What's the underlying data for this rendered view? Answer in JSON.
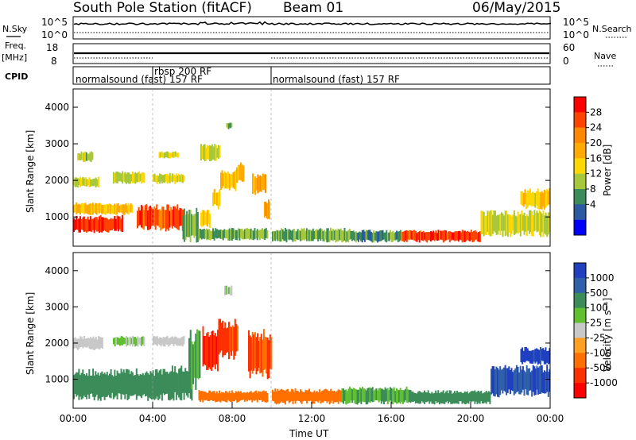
{
  "header": {
    "station": "South Pole Station (fitACF)",
    "beam": "Beam 01",
    "date": "06/May/2015"
  },
  "nsky_panel": {
    "left_label": "N.Sky",
    "right_label": "N.Search",
    "left_ticks": [
      "10^5",
      "10^0"
    ],
    "right_ticks": [
      "10^5",
      "10^0"
    ]
  },
  "freq_panel": {
    "left_label_line1": "Freq.",
    "left_label_line2": "[MHz]",
    "right_label": "Nave",
    "left_ticks": [
      "18",
      "8"
    ],
    "right_ticks": [
      "60",
      "0"
    ]
  },
  "cpid_panel": {
    "label": "CPID",
    "segments": [
      {
        "name": "normalsound (fast) 157 RF",
        "start_hour": 0,
        "end_hour": 4.0
      },
      {
        "name": "rbsp 200 RF",
        "start_hour": 4.0,
        "end_hour": 10.0
      },
      {
        "name": "normalsound (fast) 157 RF",
        "start_hour": 10.0,
        "end_hour": 24.0
      }
    ]
  },
  "power_colorbar": {
    "label": "Power [dB]",
    "ticks": [
      "28",
      "24",
      "20",
      "16",
      "12",
      "8",
      "4"
    ],
    "colors": [
      "#ff0000",
      "#ff4400",
      "#ff8800",
      "#ffaa00",
      "#ffd700",
      "#a8c83c",
      "#3c8c5a",
      "#2c5aa0",
      "#0000ff"
    ]
  },
  "velocity_colorbar": {
    "label": "Velocity [m s⁻¹]",
    "ticks": [
      "1000",
      "500",
      "100",
      "25",
      "-25",
      "-100",
      "-500",
      "-1000"
    ],
    "colors": [
      "#2040c0",
      "#3060a8",
      "#3c8c5a",
      "#60c030",
      "#c8c8c8",
      "#ffa020",
      "#ff7000",
      "#ff3000",
      "#ff0000"
    ]
  },
  "chart_data": [
    {
      "type": "heatmap",
      "panel": "power",
      "ylabel": "Slant Range [km]",
      "xlim": [
        0,
        24
      ],
      "ylim": [
        200,
        4500
      ],
      "yticks": [
        "4000",
        "3000",
        "2000",
        "1000"
      ],
      "cells": [
        {
          "t0": 0.0,
          "t1": 2.5,
          "r0": 550,
          "r1": 1050,
          "v": 28
        },
        {
          "t0": 0.0,
          "t1": 3.0,
          "r0": 1050,
          "r1": 1400,
          "v": 18
        },
        {
          "t0": 0.0,
          "t1": 1.3,
          "r0": 1800,
          "r1": 2100,
          "v": 14
        },
        {
          "t0": 0.2,
          "t1": 1.0,
          "r0": 2500,
          "r1": 2800,
          "v": 12
        },
        {
          "t0": 2.0,
          "t1": 3.6,
          "r0": 1900,
          "r1": 2250,
          "v": 14
        },
        {
          "t0": 3.2,
          "t1": 5.6,
          "r0": 600,
          "r1": 1350,
          "v": 27
        },
        {
          "t0": 4.0,
          "t1": 5.6,
          "r0": 1900,
          "r1": 2200,
          "v": 14
        },
        {
          "t0": 4.3,
          "t1": 5.3,
          "r0": 2600,
          "r1": 2800,
          "v": 14
        },
        {
          "t0": 5.5,
          "t1": 6.3,
          "r0": 300,
          "r1": 1250,
          "v": 10
        },
        {
          "t0": 6.3,
          "t1": 9.8,
          "r0": 350,
          "r1": 700,
          "v": 11
        },
        {
          "t0": 6.4,
          "t1": 6.9,
          "r0": 700,
          "r1": 1200,
          "v": 19
        },
        {
          "t0": 7.0,
          "t1": 7.4,
          "r0": 1200,
          "r1": 1800,
          "v": 17
        },
        {
          "t0": 7.4,
          "t1": 8.2,
          "r0": 1700,
          "r1": 2300,
          "v": 18
        },
        {
          "t0": 8.2,
          "t1": 8.6,
          "r0": 1900,
          "r1": 2500,
          "v": 17
        },
        {
          "t0": 9.0,
          "t1": 9.7,
          "r0": 1600,
          "r1": 2200,
          "v": 20
        },
        {
          "t0": 9.6,
          "t1": 9.9,
          "r0": 900,
          "r1": 1500,
          "v": 22
        },
        {
          "t0": 10.0,
          "t1": 14.0,
          "r0": 300,
          "r1": 700,
          "v": 11
        },
        {
          "t0": 14.0,
          "t1": 16.5,
          "r0": 300,
          "r1": 650,
          "v": 9
        },
        {
          "t0": 16.5,
          "t1": 20.5,
          "r0": 300,
          "r1": 650,
          "v": 27
        },
        {
          "t0": 20.5,
          "t1": 24.0,
          "r0": 450,
          "r1": 1200,
          "v": 14
        },
        {
          "t0": 22.5,
          "t1": 24.0,
          "r0": 1200,
          "r1": 1800,
          "v": 17
        },
        {
          "t0": 6.4,
          "t1": 7.4,
          "r0": 2500,
          "r1": 3000,
          "v": 14
        },
        {
          "t0": 7.7,
          "t1": 8.0,
          "r0": 3400,
          "r1": 3600,
          "v": 10
        }
      ]
    },
    {
      "type": "heatmap",
      "panel": "velocity",
      "ylabel": "Slant Range [km]",
      "xlabel": "Time UT",
      "xlim": [
        0,
        24
      ],
      "ylim": [
        200,
        4500
      ],
      "xticks": [
        "00:00",
        "04:00",
        "08:00",
        "12:00",
        "16:00",
        "20:00",
        "00:00"
      ],
      "yticks": [
        "4000",
        "3000",
        "2000",
        "1000"
      ],
      "cells": [
        {
          "t0": 0.0,
          "t1": 4.5,
          "r0": 400,
          "r1": 1300,
          "v": 200
        },
        {
          "t0": 0.0,
          "t1": 1.5,
          "r0": 1800,
          "r1": 2200,
          "v": 0
        },
        {
          "t0": 2.0,
          "t1": 3.6,
          "r0": 1900,
          "r1": 2200,
          "v": 30
        },
        {
          "t0": 4.0,
          "t1": 5.6,
          "r0": 1900,
          "r1": 2200,
          "v": 0
        },
        {
          "t0": 4.5,
          "t1": 6.0,
          "r0": 400,
          "r1": 1400,
          "v": 150
        },
        {
          "t0": 5.8,
          "t1": 6.4,
          "r0": 600,
          "r1": 2400,
          "v": 80
        },
        {
          "t0": 6.3,
          "t1": 9.8,
          "r0": 350,
          "r1": 700,
          "v": -150
        },
        {
          "t0": 6.5,
          "t1": 7.3,
          "r0": 1100,
          "r1": 2500,
          "v": -600
        },
        {
          "t0": 7.3,
          "t1": 8.3,
          "r0": 1500,
          "r1": 2700,
          "v": -400
        },
        {
          "t0": 8.8,
          "t1": 10.0,
          "r0": 1000,
          "r1": 2400,
          "v": -300
        },
        {
          "t0": 10.0,
          "t1": 13.5,
          "r0": 300,
          "r1": 750,
          "v": -150
        },
        {
          "t0": 13.5,
          "t1": 17.0,
          "r0": 300,
          "r1": 800,
          "v": 60
        },
        {
          "t0": 17.0,
          "t1": 21.0,
          "r0": 300,
          "r1": 700,
          "v": 150
        },
        {
          "t0": 21.0,
          "t1": 24.0,
          "r0": 500,
          "r1": 1400,
          "v": 700
        },
        {
          "t0": 22.5,
          "t1": 24.0,
          "r0": 1400,
          "r1": 1900,
          "v": 1000
        },
        {
          "t0": 7.6,
          "t1": 8.0,
          "r0": 3300,
          "r1": 3600,
          "v": 20
        }
      ]
    }
  ]
}
